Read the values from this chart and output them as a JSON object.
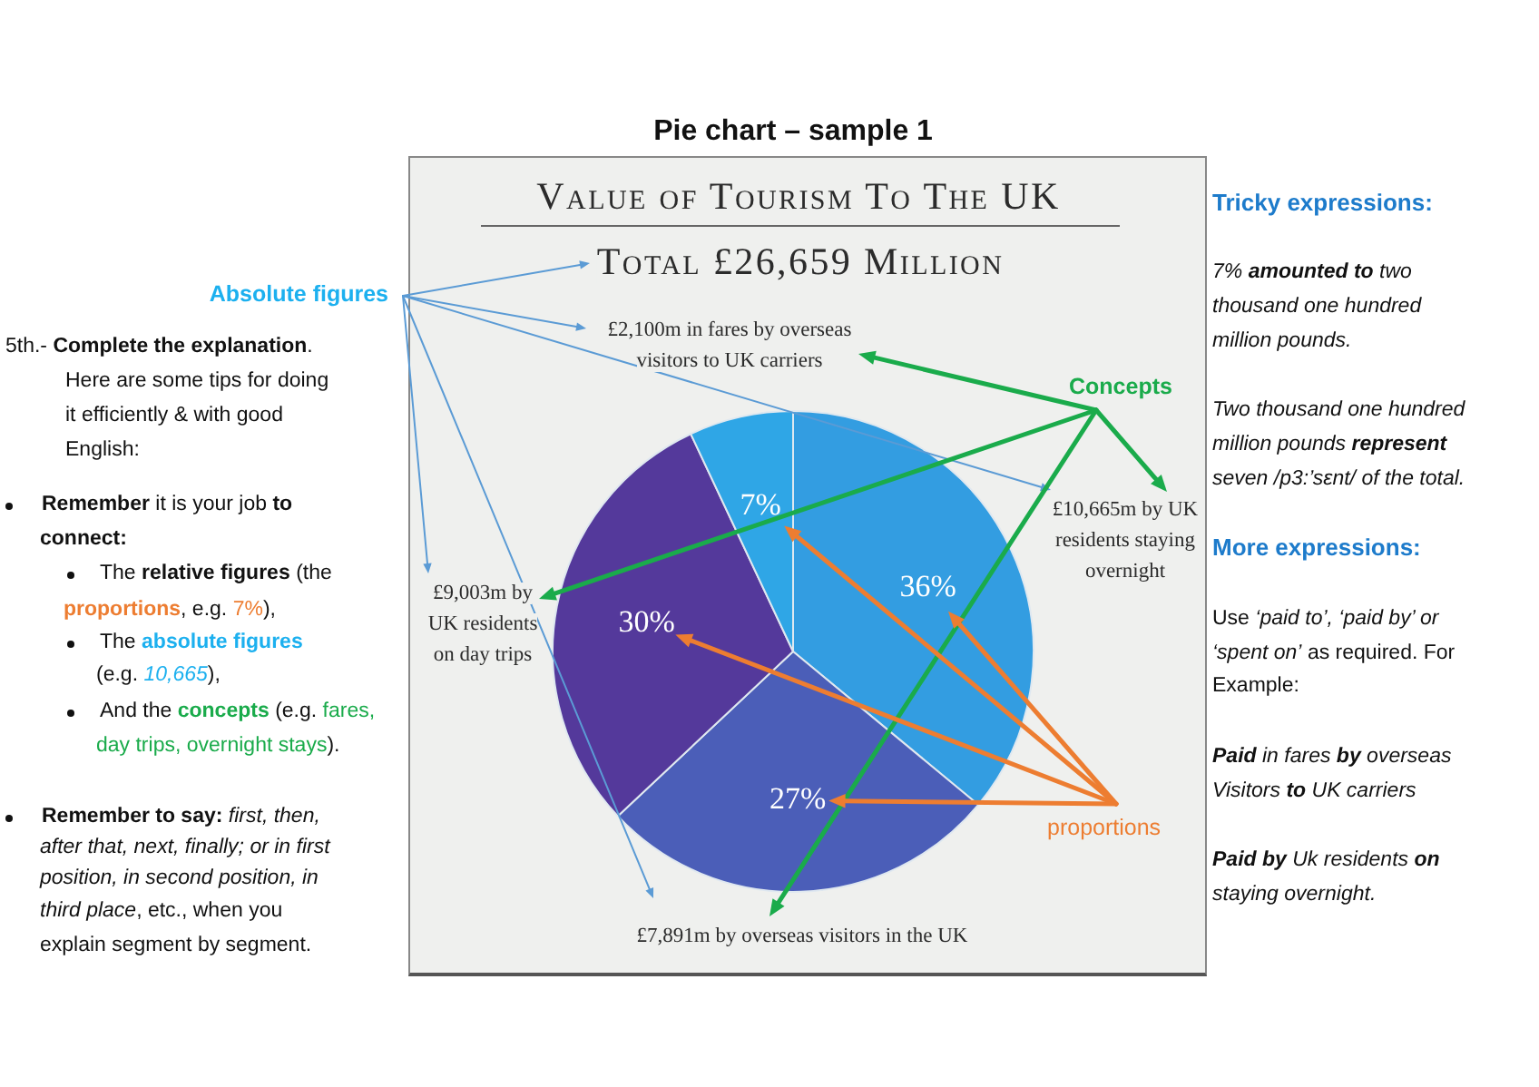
{
  "chart_data": {
    "type": "pie",
    "title": "Value of Tourism To The UK",
    "subtitle": "Total £26,659 Million",
    "categories": [
      "£10,665m by UK residents staying overnight",
      "£7,891m by overseas visitors in the UK",
      "£9,003m by UK residents on day trips",
      "£2,100m in fares by overseas visitors to UK carriers"
    ],
    "values": [
      36,
      27,
      30,
      7
    ],
    "colors": [
      "#339de1",
      "#4b5eb8",
      "#54399b",
      "#2fa6e6"
    ],
    "value_labels": [
      "36%",
      "27%",
      "30%",
      "7%"
    ],
    "annotations": [
      "Pie chart – sample 1",
      "Absolute figures",
      "5th.-",
      "Complete the explanation",
      ".",
      "Here are some tips for doing",
      "it efficiently & with good",
      "English:",
      "Remember",
      "it is your job",
      "to",
      "connect:",
      "The",
      "relative figures",
      "(the",
      "proportions",
      ", e.g.",
      "7%",
      "),",
      "The",
      "absolute figures",
      "(e.g.",
      "10,665",
      "),",
      "And the",
      "concepts",
      "(e.g.",
      "fares,",
      "day trips, overnight stays",
      ").",
      "Remember to say:",
      "first, then,",
      "after that, next, finally; or in first",
      "position, in second position, in",
      "third place",
      ", etc., when you",
      "explain segment by segment.",
      "Tricky expressions:",
      "7%",
      "amounted to",
      "two",
      "thousand one hundred",
      "million pounds.",
      "Two thousand one hundred",
      "million pounds",
      "represent",
      "seven /p3:’sɛnt/ of the total.",
      "More expressions:",
      "Use",
      "‘paid to’, ‘paid by’ or",
      "‘spent on’",
      "as required. For",
      "Example:",
      "Paid",
      "in fares",
      "by",
      "overseas",
      "Visitors",
      "to",
      "UK carriers",
      "Paid by",
      "Uk residents",
      "on",
      "staying overnight.",
      "Concepts",
      "proportions"
    ]
  }
}
